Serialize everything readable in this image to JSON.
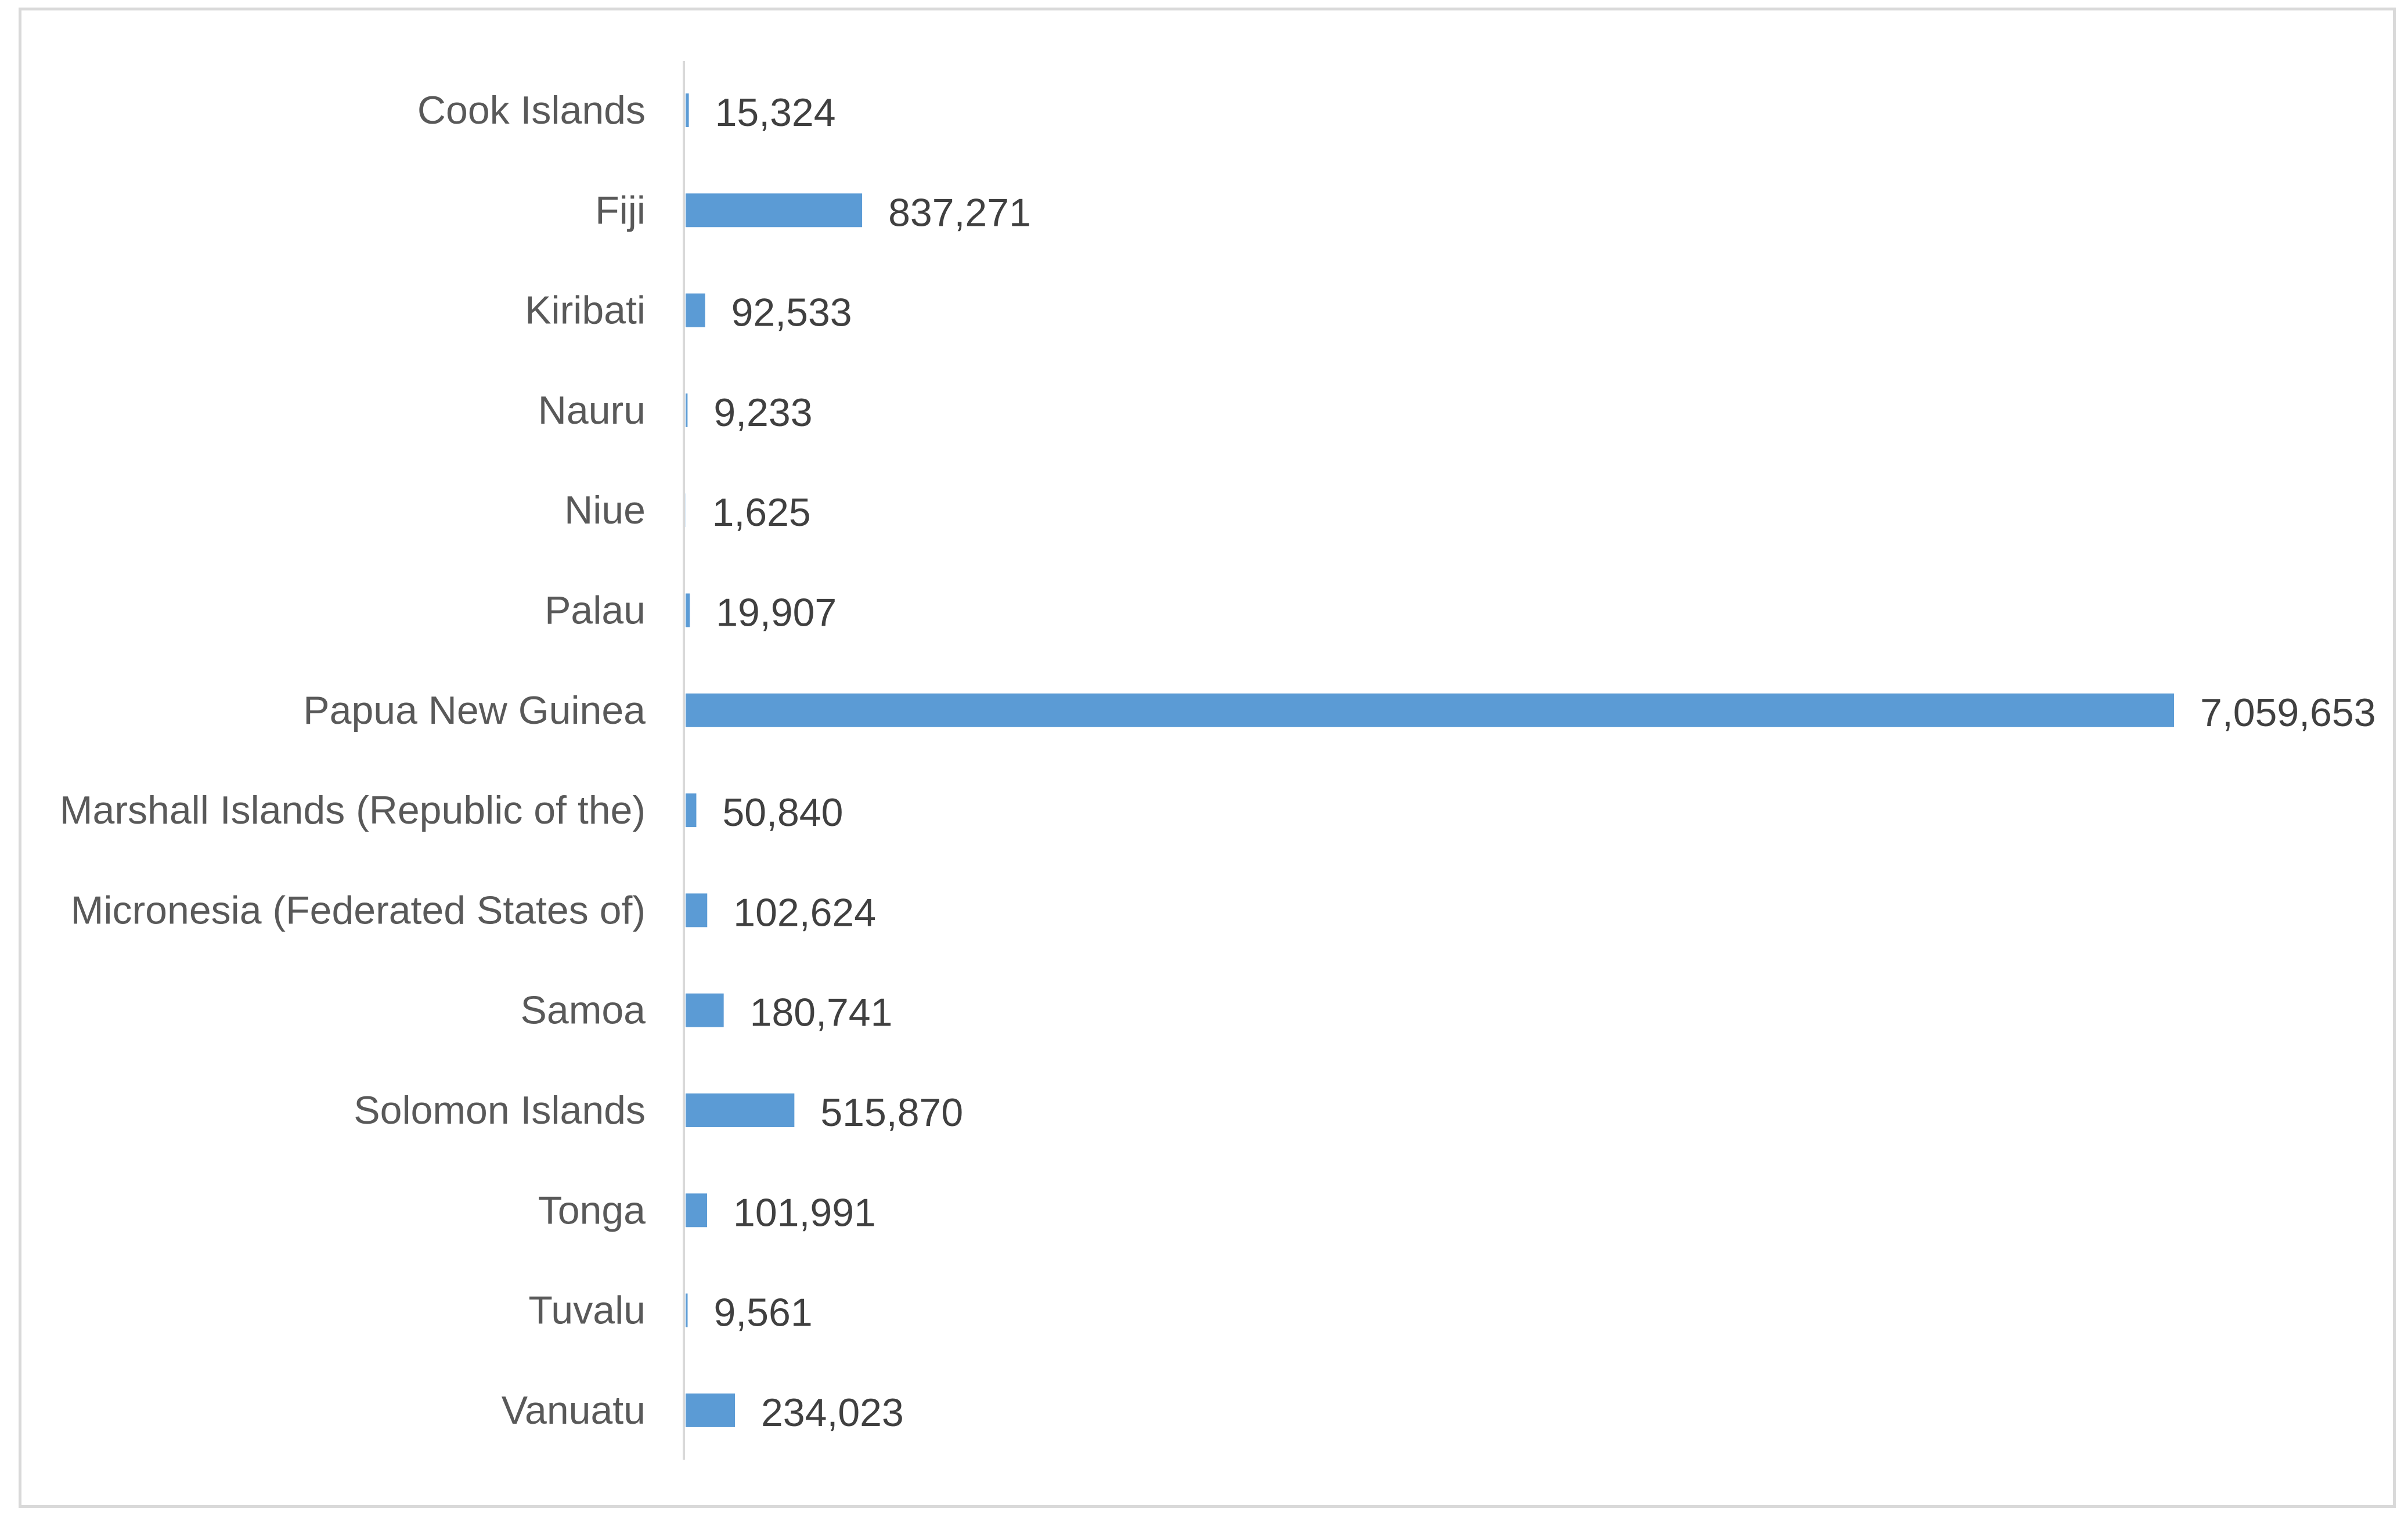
{
  "chart_data": {
    "type": "bar",
    "orientation": "horizontal",
    "categories": [
      "Cook Islands",
      "Fiji",
      "Kiribati",
      "Nauru",
      "Niue",
      "Palau",
      "Papua New Guinea",
      "Marshall Islands (Republic of the)",
      "Micronesia (Federated States of)",
      "Samoa",
      "Solomon Islands",
      "Tonga",
      "Tuvalu",
      "Vanuatu"
    ],
    "values": [
      15324,
      837271,
      92533,
      9233,
      1625,
      19907,
      7059653,
      50840,
      102624,
      180741,
      515870,
      101991,
      9561,
      234023
    ],
    "value_labels": [
      "15,324",
      "837,271",
      "92,533",
      "9,233",
      "1,625",
      "19,907",
      "7,059,653",
      "50,840",
      "102,624",
      "180,741",
      "515,870",
      "101,991",
      "9,561",
      "234,023"
    ],
    "title": "",
    "xlabel": "",
    "ylabel": "",
    "xlim": [
      0,
      7059653
    ],
    "grid": false,
    "legend": "none",
    "bar_color": "#5b9bd5",
    "axis_color": "#d9d9d9"
  }
}
